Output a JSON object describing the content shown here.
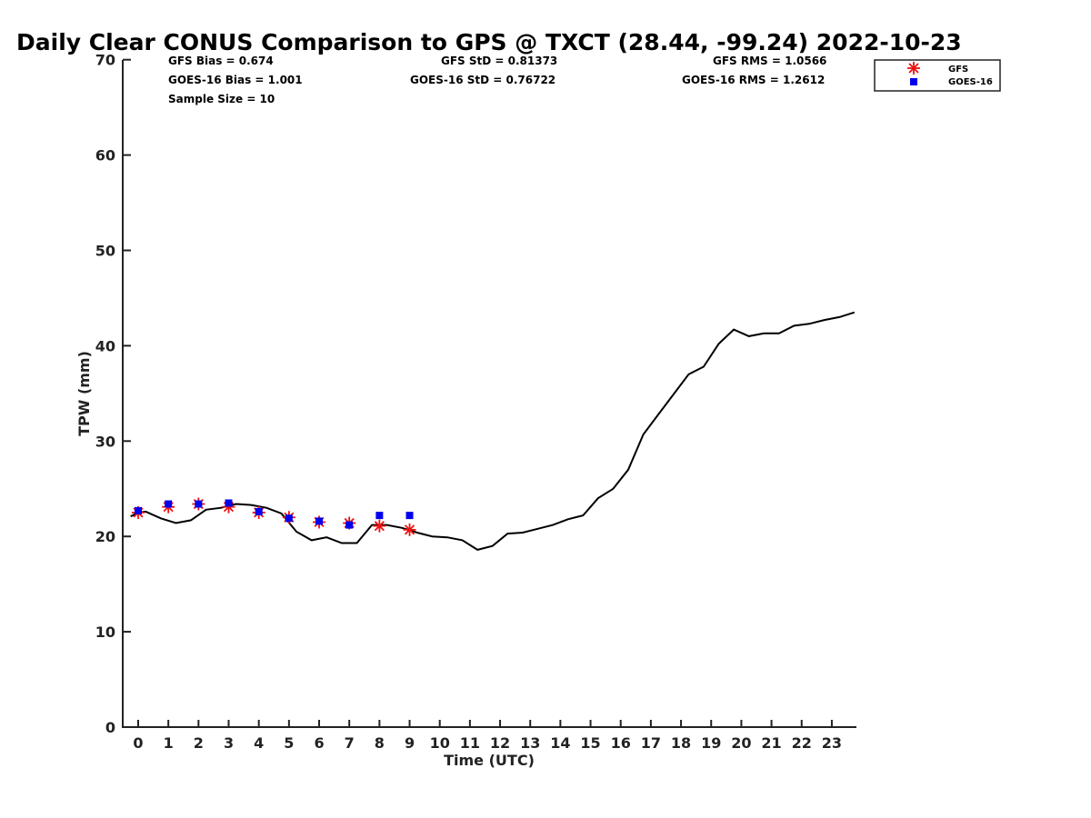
{
  "chart_data": {
    "type": "line",
    "title": "Daily Clear CONUS Comparison to GPS @ TXCT (28.44, -99.24) 2022-10-23",
    "xlabel": "Time (UTC)",
    "ylabel": "TPW (mm)",
    "xlim": [
      -0.5,
      23.75
    ],
    "ylim": [
      0,
      70
    ],
    "xticks": [
      "0",
      "1",
      "2",
      "3",
      "4",
      "5",
      "6",
      "7",
      "8",
      "9",
      "10",
      "11",
      "12",
      "13",
      "14",
      "15",
      "16",
      "17",
      "18",
      "19",
      "20",
      "21",
      "22",
      "23"
    ],
    "yticks": [
      "0",
      "10",
      "20",
      "30",
      "40",
      "50",
      "60",
      "70"
    ],
    "grid": false,
    "legend_position": "top-right",
    "stats": {
      "gfs_bias": "GFS Bias = 0.674",
      "goes_bias": "GOES-16 Bias = 1.001",
      "sample_size": "Sample Size = 10",
      "gfs_std": "GFS StD = 0.81373",
      "goes_std": "GOES-16 StD = 0.76722",
      "gfs_rms": "GFS RMS = 1.0566",
      "goes_rms": "GOES-16 RMS = 1.2612"
    },
    "gps_line": {
      "color": "#000000",
      "x": [
        -0.25,
        0.0,
        0.25,
        0.75,
        1.25,
        1.75,
        2.25,
        2.75,
        3.25,
        3.75,
        4.25,
        4.75,
        5.25,
        5.75,
        6.25,
        6.75,
        7.25,
        7.75,
        8.25,
        8.75,
        9.25,
        9.75,
        10.25,
        10.75,
        11.25,
        11.75,
        12.25,
        12.75,
        13.25,
        13.75,
        14.25,
        14.75,
        15.25,
        15.75,
        16.25,
        16.75,
        17.25,
        17.75,
        18.25,
        18.75,
        19.25,
        19.75,
        20.25,
        20.75,
        21.25,
        21.75,
        22.25,
        22.75,
        23.25,
        23.75
      ],
      "y": [
        22.1,
        22.5,
        22.6,
        21.9,
        21.4,
        21.7,
        22.8,
        23.0,
        23.4,
        23.3,
        23.0,
        22.4,
        20.5,
        19.6,
        19.9,
        19.3,
        19.3,
        21.2,
        21.2,
        20.9,
        20.4,
        20.0,
        19.9,
        19.6,
        18.6,
        19.0,
        20.3,
        20.4,
        20.8,
        21.2,
        21.8,
        22.2,
        24.0,
        25.0,
        27.0,
        30.7,
        32.8,
        34.9,
        37.0,
        37.8,
        40.2,
        41.7,
        41.0,
        41.3,
        41.3,
        42.1,
        42.3,
        42.7,
        43.0,
        43.5
      ]
    },
    "series": [
      {
        "name": "GFS",
        "color": "#ee1111",
        "marker": "asterisk",
        "x": [
          0,
          1,
          2,
          3,
          4,
          5,
          6,
          7,
          8,
          9
        ],
        "y": [
          22.5,
          23.1,
          23.4,
          23.1,
          22.5,
          22.0,
          21.5,
          21.4,
          21.1,
          20.7
        ]
      },
      {
        "name": "GOES-16",
        "color": "#0000ee",
        "marker": "square",
        "x": [
          0,
          1,
          2,
          3,
          4,
          5,
          6,
          7,
          8,
          9
        ],
        "y": [
          22.7,
          23.4,
          23.4,
          23.5,
          22.6,
          21.9,
          21.6,
          21.2,
          22.2,
          22.2
        ]
      }
    ]
  }
}
